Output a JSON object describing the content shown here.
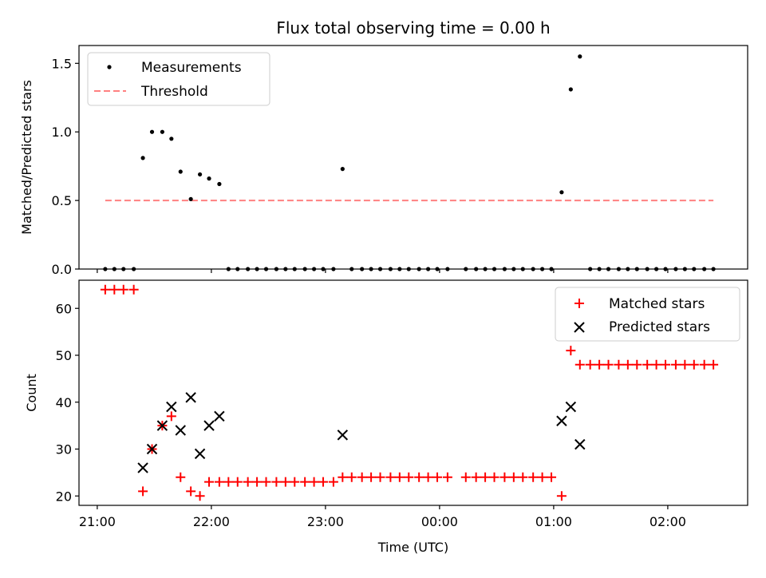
{
  "chart_data": [
    {
      "type": "scatter",
      "title": "Flux total observing time = 0.00 h",
      "xlabel": "",
      "ylabel": "Matched/Predicted stars",
      "ylim": [
        0,
        1.63
      ],
      "yticks": [
        "0.0",
        "0.5",
        "1.0",
        "1.5"
      ],
      "ytick_values": [
        0,
        0.5,
        1.0,
        1.5
      ],
      "legend_position": "upper-left",
      "series": [
        {
          "name": "Measurements",
          "color": "#000000",
          "marker": "dot",
          "x": [
            21.07,
            21.15,
            21.23,
            21.32,
            21.4,
            21.48,
            21.57,
            21.65,
            21.73,
            21.82,
            21.9,
            21.98,
            22.07,
            22.15,
            22.23,
            22.32,
            22.4,
            22.48,
            22.57,
            22.65,
            22.73,
            22.82,
            22.9,
            22.98,
            23.07,
            23.15,
            23.23,
            23.32,
            23.4,
            23.48,
            23.57,
            23.65,
            23.73,
            23.82,
            23.9,
            23.98,
            24.07,
            24.23,
            24.32,
            24.4,
            24.48,
            24.57,
            24.65,
            24.73,
            24.82,
            24.9,
            24.98,
            25.07,
            25.15,
            25.23,
            25.32,
            25.4,
            25.48,
            25.57,
            25.65,
            25.73,
            25.82,
            25.9,
            25.98,
            26.07,
            26.15,
            26.23,
            26.32,
            26.4
          ],
          "y": [
            0,
            0,
            0,
            0,
            0.81,
            1.0,
            1.0,
            0.95,
            0.71,
            0.51,
            0.69,
            0.66,
            0.62,
            0,
            0,
            0,
            0,
            0,
            0,
            0,
            0,
            0,
            0,
            0,
            0,
            0.73,
            0,
            0,
            0,
            0,
            0,
            0,
            0,
            0,
            0,
            0,
            0,
            0,
            0,
            0,
            0,
            0,
            0,
            0,
            0,
            0,
            0,
            0.56,
            1.31,
            1.55,
            0,
            0,
            0,
            0,
            0,
            0,
            0,
            0,
            0,
            0,
            0,
            0,
            0,
            0
          ]
        },
        {
          "name": "Threshold",
          "color": "#ff8080",
          "style": "dashed",
          "x": [
            21.07,
            26.4
          ],
          "y": [
            0.5,
            0.5
          ]
        }
      ]
    },
    {
      "type": "scatter",
      "title": "",
      "xlabel": "Time (UTC)",
      "ylabel": "Count",
      "ylim": [
        18,
        66
      ],
      "yticks": [
        "20",
        "30",
        "40",
        "50",
        "60"
      ],
      "ytick_values": [
        20,
        30,
        40,
        50,
        60
      ],
      "xlim": [
        20.84,
        26.7
      ],
      "xticks": [
        "21:00",
        "22:00",
        "23:00",
        "00:00",
        "01:00",
        "02:00"
      ],
      "xtick_values": [
        21,
        22,
        23,
        24,
        25,
        26
      ],
      "legend_position": "upper-right",
      "series": [
        {
          "name": "Matched stars",
          "color": "#ff0000",
          "marker": "plus",
          "x": [
            21.07,
            21.15,
            21.23,
            21.32,
            21.4,
            21.48,
            21.57,
            21.65,
            21.73,
            21.82,
            21.9,
            21.98,
            22.07,
            22.15,
            22.23,
            22.32,
            22.4,
            22.48,
            22.57,
            22.65,
            22.73,
            22.82,
            22.9,
            22.98,
            23.07,
            23.15,
            23.23,
            23.32,
            23.4,
            23.48,
            23.57,
            23.65,
            23.73,
            23.82,
            23.9,
            23.98,
            24.07,
            24.23,
            24.32,
            24.4,
            24.48,
            24.57,
            24.65,
            24.73,
            24.82,
            24.9,
            24.98,
            25.07,
            25.15,
            25.23,
            25.32,
            25.4,
            25.48,
            25.57,
            25.65,
            25.73,
            25.82,
            25.9,
            25.98,
            26.07,
            26.15,
            26.23,
            26.32,
            26.4
          ],
          "y": [
            64,
            64,
            64,
            64,
            21,
            30,
            35,
            37,
            24,
            21,
            20,
            23,
            23,
            23,
            23,
            23,
            23,
            23,
            23,
            23,
            23,
            23,
            23,
            23,
            23,
            24,
            24,
            24,
            24,
            24,
            24,
            24,
            24,
            24,
            24,
            24,
            24,
            24,
            24,
            24,
            24,
            24,
            24,
            24,
            24,
            24,
            24,
            20,
            51,
            48,
            48,
            48,
            48,
            48,
            48,
            48,
            48,
            48,
            48,
            48,
            48,
            48,
            48,
            48
          ]
        },
        {
          "name": "Predicted stars",
          "color": "#000000",
          "marker": "x",
          "x": [
            21.4,
            21.48,
            21.57,
            21.65,
            21.73,
            21.82,
            21.9,
            21.98,
            22.07,
            23.15,
            25.07,
            25.15,
            25.23
          ],
          "y": [
            26,
            30,
            35,
            39,
            34,
            41,
            29,
            35,
            37,
            33,
            36,
            39,
            31
          ]
        }
      ]
    }
  ]
}
